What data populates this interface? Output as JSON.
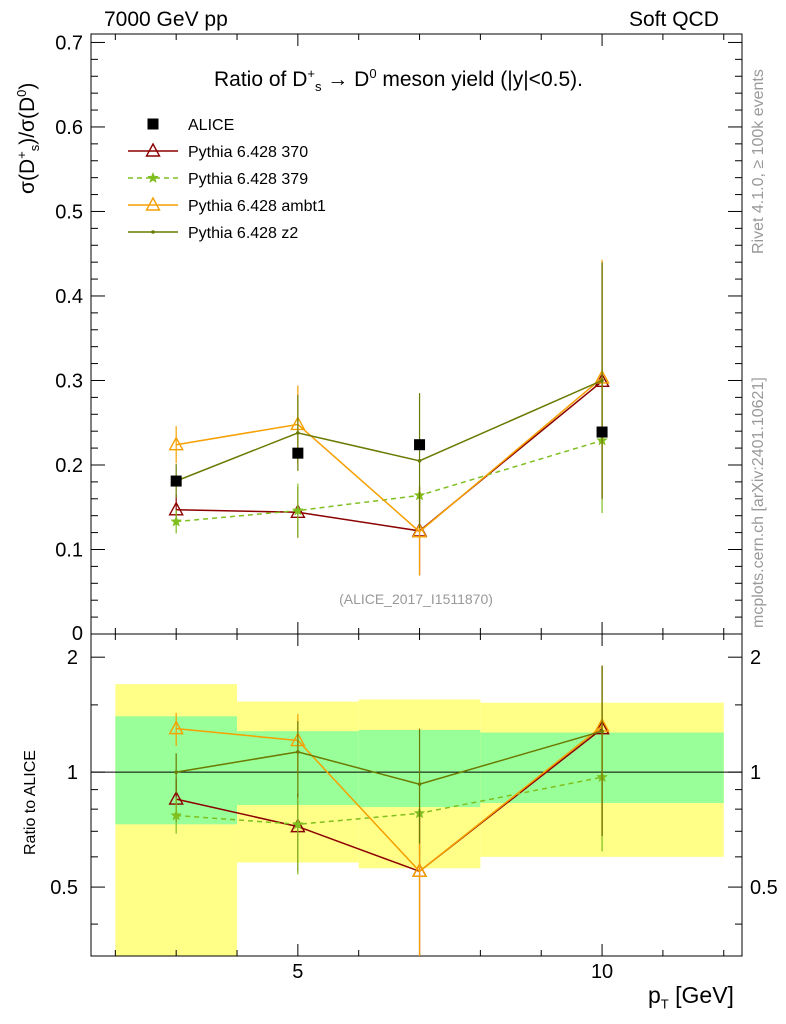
{
  "header": {
    "left": "7000 GeV pp",
    "right": "Soft QCD"
  },
  "side_labels": {
    "rivet": "Rivet 4.1.0, ≥ 100k events",
    "mcplots": "mcplots.cern.ch [arXiv:2401.10621]"
  },
  "watermark": "(ALICE_2017_I1511870)",
  "title": {
    "prefix": "Ratio of D",
    "sup1": "+",
    "sub1": "s",
    "arrow": " → D",
    "sup2": "0",
    "suffix": " meson yield (|y|<0.5)."
  },
  "y_label_main": {
    "a": "σ(D",
    "sup1": "+",
    "sub1": "s",
    "b": ")/σ(D",
    "sup2": "0",
    "c": ")"
  },
  "y_label_ratio": "Ratio to ALICE",
  "x_label": {
    "a": "p",
    "sub": "T",
    "b": " [GeV]"
  },
  "colors": {
    "alice": "#000000",
    "p370": "#8b0000",
    "p379": "#7fbf1f",
    "ambt1": "#f5a000",
    "z2": "#6b7a00",
    "band_green": "#99ff99",
    "band_yellow": "#ffff88"
  },
  "chart_data": [
    {
      "type": "scatter",
      "panel": "main",
      "x_axis": {
        "range": [
          1.6,
          12.3
        ],
        "ticks": [
          5,
          10
        ]
      },
      "y_axis": {
        "range": [
          0,
          0.71
        ],
        "ticks": [
          0.1,
          0.2,
          0.3,
          0.4,
          0.5,
          0.6,
          0.7
        ],
        "tick_labels": [
          "0.1",
          "0.2",
          "0.3",
          "0.4",
          "0.5",
          "0.6",
          "0.7"
        ],
        "bottom_label": "0"
      },
      "data_series": {
        "name": "ALICE",
        "x": [
          3,
          5,
          7,
          10
        ],
        "y": [
          0.181,
          0.214,
          0.224,
          0.239
        ]
      },
      "series": [
        {
          "key": "p370",
          "name": "Pythia 6.428 370",
          "style": "solid",
          "marker": "triangle-open",
          "x": [
            3,
            5,
            7,
            10
          ],
          "y": [
            0.147,
            0.144,
            0.122,
            0.299
          ],
          "err": [
            0.018,
            0.03,
            0.052,
            0.14
          ]
        },
        {
          "key": "p379",
          "name": "Pythia 6.428 379",
          "style": "dashed",
          "marker": "star",
          "x": [
            3,
            5,
            7,
            10
          ],
          "y": [
            0.133,
            0.146,
            0.164,
            0.229
          ],
          "err": [
            0.014,
            0.032,
            0.012,
            0.086
          ]
        },
        {
          "key": "ambt1",
          "name": "Pythia 6.428 ambt1",
          "style": "solid",
          "marker": "triangle-open",
          "x": [
            3,
            5,
            7,
            10
          ],
          "y": [
            0.224,
            0.248,
            0.121,
            0.303
          ],
          "err": [
            0.022,
            0.046,
            0.052,
            0.14
          ]
        },
        {
          "key": "z2",
          "name": "Pythia 6.428 z2",
          "style": "solid",
          "marker": "dot",
          "x": [
            3,
            5,
            7,
            10
          ],
          "y": [
            0.181,
            0.238,
            0.205,
            0.3
          ],
          "err": [
            0.02,
            0.045,
            0.08,
            0.14
          ]
        }
      ]
    },
    {
      "type": "line",
      "panel": "ratio",
      "x_axis": {
        "range": [
          1.6,
          12.3
        ],
        "ticks": [
          5,
          10
        ],
        "tick_labels": [
          "5",
          "10"
        ]
      },
      "y_axis": {
        "range": [
          0.33,
          2.3
        ],
        "ticks": [
          0.5,
          1,
          2
        ],
        "tick_labels": [
          "0.5",
          "1",
          "2"
        ],
        "scale": "log"
      },
      "bands": [
        {
          "x0": 2,
          "x1": 4,
          "green": [
            0.73,
            1.4
          ],
          "yellow": [
            0.33,
            1.7
          ]
        },
        {
          "x0": 4,
          "x1": 6,
          "green": [
            0.82,
            1.28
          ],
          "yellow": [
            0.58,
            1.53
          ]
        },
        {
          "x0": 6,
          "x1": 8,
          "green": [
            0.81,
            1.29
          ],
          "yellow": [
            0.56,
            1.55
          ]
        },
        {
          "x0": 8,
          "x1": 12,
          "green": [
            0.83,
            1.27
          ],
          "yellow": [
            0.6,
            1.52
          ]
        }
      ],
      "series": [
        {
          "key": "p370",
          "name": "Pythia 6.428 370",
          "x": [
            3,
            5,
            7,
            10
          ],
          "y": [
            0.85,
            0.72,
            0.55,
            1.3
          ],
          "lo": [
            0.74,
            0.55,
            0.33,
            0.68
          ],
          "hi": [
            0.96,
            0.88,
            0.78,
            1.9
          ]
        },
        {
          "key": "p379",
          "name": "Pythia 6.428 379",
          "x": [
            3,
            5,
            7,
            10
          ],
          "y": [
            0.77,
            0.73,
            0.78,
            0.97
          ],
          "lo": [
            0.69,
            0.54,
            0.6,
            0.62
          ],
          "hi": [
            0.86,
            0.86,
            0.96,
            1.3
          ]
        },
        {
          "key": "ambt1",
          "name": "Pythia 6.428 ambt1",
          "x": [
            3,
            5,
            7,
            10
          ],
          "y": [
            1.3,
            1.21,
            0.55,
            1.32
          ],
          "lo": [
            1.17,
            0.99,
            0.33,
            0.69
          ],
          "hi": [
            1.43,
            1.42,
            0.78,
            1.9
          ]
        },
        {
          "key": "z2",
          "name": "Pythia 6.428 z2",
          "x": [
            3,
            5,
            7,
            10
          ],
          "y": [
            1.0,
            1.13,
            0.93,
            1.28
          ],
          "lo": [
            0.88,
            0.86,
            0.65,
            0.68
          ],
          "hi": [
            1.12,
            1.36,
            1.3,
            1.9
          ]
        }
      ]
    }
  ]
}
